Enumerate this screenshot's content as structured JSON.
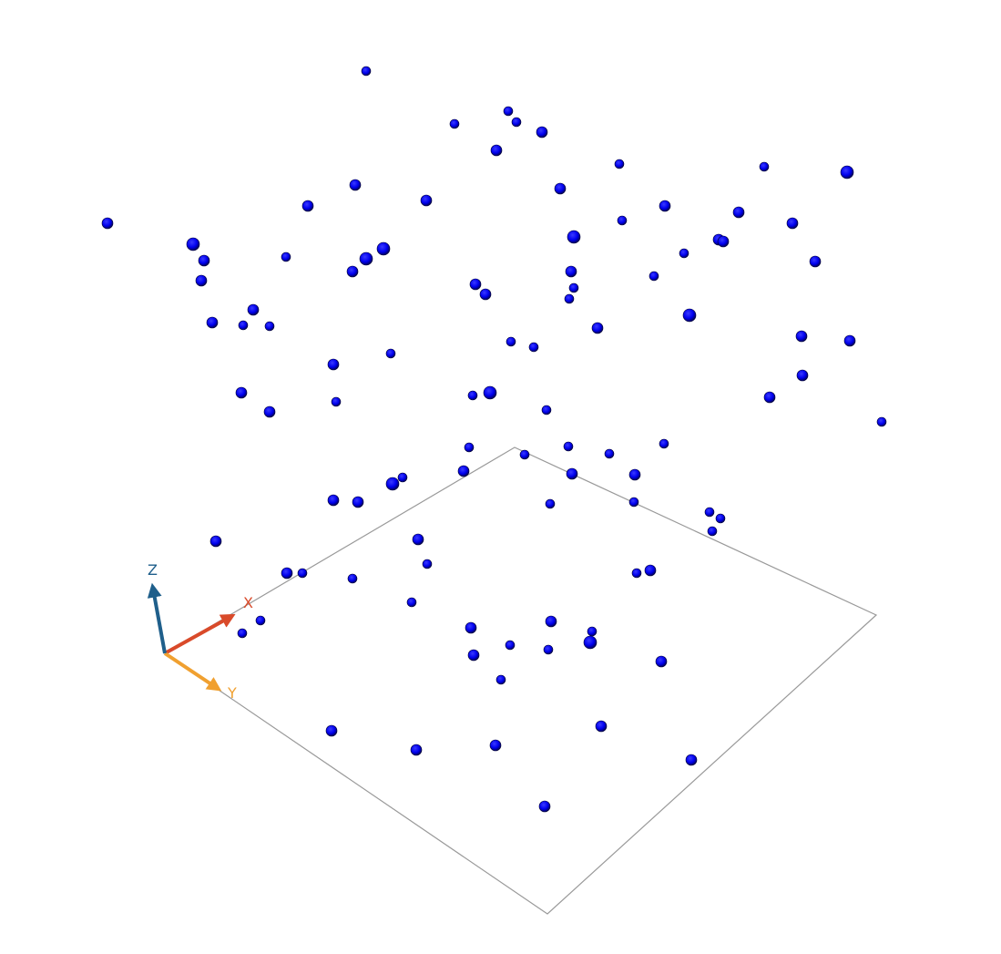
{
  "scene": {
    "type": "3d-point-cloud",
    "background_color": "#ffffff",
    "point_color": "#0000ee",
    "ground_plane_color": "#999999",
    "point_count": 117
  },
  "axes": {
    "x": {
      "label": "X",
      "color": "#d94a2a"
    },
    "y": {
      "label": "Y",
      "color": "#f0a030"
    },
    "z": {
      "label": "Z",
      "color": "#1f5f8b"
    }
  }
}
